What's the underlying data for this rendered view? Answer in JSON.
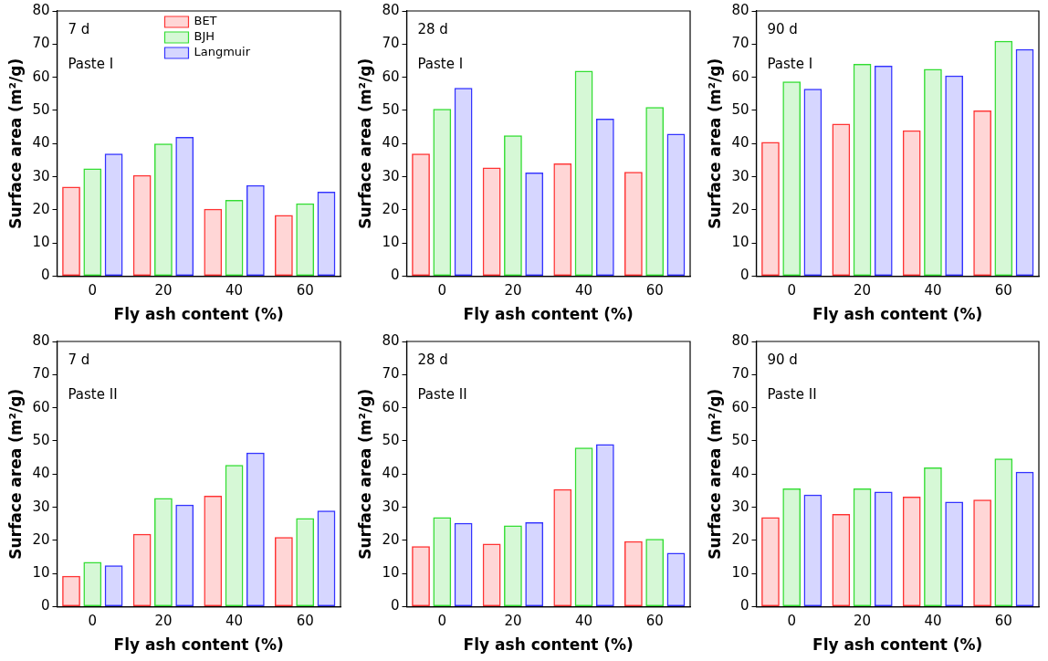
{
  "chart_data": [
    {
      "type": "bar",
      "categories": [
        "0",
        "20",
        "40",
        "60"
      ],
      "xlabel": "Fly ash content (%)",
      "ylabel": "Surface area (m²/g)",
      "ylim": [
        0,
        80
      ],
      "yticks": [
        0,
        10,
        20,
        30,
        40,
        50,
        60,
        70,
        80
      ],
      "grid": false,
      "legend": "top",
      "annotations": [
        "7 d",
        "Paste I"
      ],
      "series": [
        {
          "name": "BET",
          "color": "#ff3333",
          "values": [
            27,
            30.5,
            20.3,
            18.5
          ]
        },
        {
          "name": "BJH",
          "color": "#33dd33",
          "values": [
            32.5,
            40,
            23,
            22
          ]
        },
        {
          "name": "Langmuir",
          "color": "#3333ff",
          "values": [
            37,
            42,
            27.5,
            25.5
          ]
        }
      ]
    },
    {
      "type": "bar",
      "categories": [
        "0",
        "20",
        "40",
        "60"
      ],
      "xlabel": "Fly ash content (%)",
      "ylabel": "Surface area (m²/g)",
      "ylim": [
        0,
        80
      ],
      "yticks": [
        0,
        10,
        20,
        30,
        40,
        50,
        60,
        70,
        80
      ],
      "grid": false,
      "annotations": [
        "28 d",
        "Paste I"
      ],
      "series": [
        {
          "color": "#ff3333",
          "values": [
            37,
            32.8,
            34,
            31.5
          ]
        },
        {
          "color": "#33dd33",
          "values": [
            50.5,
            42.5,
            62,
            51
          ]
        },
        {
          "color": "#3333ff",
          "values": [
            56.8,
            31.3,
            47.5,
            43
          ]
        }
      ]
    },
    {
      "type": "bar",
      "categories": [
        "0",
        "20",
        "40",
        "60"
      ],
      "xlabel": "Fly ash content (%)",
      "ylabel": "Surface area (m²/g)",
      "ylim": [
        0,
        80
      ],
      "yticks": [
        0,
        10,
        20,
        30,
        40,
        50,
        60,
        70,
        80
      ],
      "grid": false,
      "annotations": [
        "90 d",
        "Paste I"
      ],
      "series": [
        {
          "color": "#ff3333",
          "values": [
            40.5,
            46,
            44,
            50
          ]
        },
        {
          "color": "#33dd33",
          "values": [
            58.7,
            64,
            62.5,
            71
          ]
        },
        {
          "color": "#3333ff",
          "values": [
            56.5,
            63.5,
            60.5,
            68.5
          ]
        }
      ]
    },
    {
      "type": "bar",
      "categories": [
        "0",
        "20",
        "40",
        "60"
      ],
      "xlabel": "Fly ash content (%)",
      "ylabel": "Surface area (m²/g)",
      "ylim": [
        0,
        80
      ],
      "yticks": [
        0,
        10,
        20,
        30,
        40,
        50,
        60,
        70,
        80
      ],
      "grid": false,
      "annotations": [
        "7 d",
        "Paste II"
      ],
      "series": [
        {
          "color": "#ff3333",
          "values": [
            9.3,
            22,
            33.5,
            21
          ]
        },
        {
          "color": "#33dd33",
          "values": [
            13.5,
            32.8,
            42.8,
            26.7
          ]
        },
        {
          "color": "#3333ff",
          "values": [
            12.5,
            30.8,
            46.5,
            29
          ]
        }
      ]
    },
    {
      "type": "bar",
      "categories": [
        "0",
        "20",
        "40",
        "60"
      ],
      "xlabel": "Fly ash content (%)",
      "ylabel": "Surface area (m²/g)",
      "ylim": [
        0,
        80
      ],
      "yticks": [
        0,
        10,
        20,
        30,
        40,
        50,
        60,
        70,
        80
      ],
      "grid": false,
      "annotations": [
        "28 d",
        "Paste II"
      ],
      "series": [
        {
          "color": "#ff3333",
          "values": [
            18.3,
            19,
            35.5,
            19.8
          ]
        },
        {
          "color": "#33dd33",
          "values": [
            27,
            24.5,
            48,
            20.5
          ]
        },
        {
          "color": "#3333ff",
          "values": [
            25.3,
            25.5,
            49,
            16.3
          ]
        }
      ]
    },
    {
      "type": "bar",
      "categories": [
        "0",
        "20",
        "40",
        "60"
      ],
      "xlabel": "Fly ash content (%)",
      "ylabel": "Surface area (m²/g)",
      "ylim": [
        0,
        80
      ],
      "yticks": [
        0,
        10,
        20,
        30,
        40,
        50,
        60,
        70,
        80
      ],
      "grid": false,
      "annotations": [
        "90 d",
        "Paste II"
      ],
      "series": [
        {
          "color": "#ff3333",
          "values": [
            27,
            28,
            33.2,
            32.3
          ]
        },
        {
          "color": "#33dd33",
          "values": [
            35.7,
            35.7,
            42,
            44.7
          ]
        },
        {
          "color": "#3333ff",
          "values": [
            33.8,
            34.7,
            31.7,
            40.7
          ]
        }
      ]
    }
  ]
}
